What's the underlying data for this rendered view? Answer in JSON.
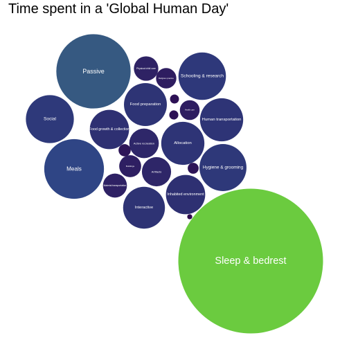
{
  "chart_data": {
    "type": "bubble",
    "title": "Time spent in a 'Global Human Day'",
    "color_scale": {
      "low": "#2d0a4e",
      "mid": "#2f4a8a",
      "high": "#6bcb3f"
    },
    "bubbles": [
      {
        "label": "Sleep & bedrest",
        "value": 9.1
      },
      {
        "label": "Passive",
        "value": 2.4
      },
      {
        "label": "Meals",
        "value": 1.55
      },
      {
        "label": "Social",
        "value": 1.0
      },
      {
        "label": "Schooling & research",
        "value": 0.98
      },
      {
        "label": "Hygiene & grooming",
        "value": 0.96
      },
      {
        "label": "Human transportation",
        "value": 0.81
      },
      {
        "label": "Allocation",
        "value": 0.81
      },
      {
        "label": "Food preparation",
        "value": 0.8
      },
      {
        "label": "Interactive",
        "value": 0.76
      },
      {
        "label": "Inhabited environment",
        "value": 0.67
      },
      {
        "label": "Food growth & collection",
        "value": 0.67
      },
      {
        "label": "Active recreation",
        "value": 0.38
      },
      {
        "label": "Artifacts",
        "value": 0.37
      },
      {
        "label": "Physical child care",
        "value": 0.26
      },
      {
        "label": "Material transportation",
        "value": 0.25
      },
      {
        "label": "Buildings",
        "value": 0.21
      },
      {
        "label": "Religious practice",
        "value": 0.18
      },
      {
        "label": "Health care",
        "value": 0.17
      },
      {
        "label": "",
        "value": 0.065
      },
      {
        "label": "",
        "value": 0.052
      },
      {
        "label": "",
        "value": 0.036
      },
      {
        "label": "",
        "value": 0.035
      },
      {
        "label": "",
        "value": 0.011
      }
    ]
  }
}
